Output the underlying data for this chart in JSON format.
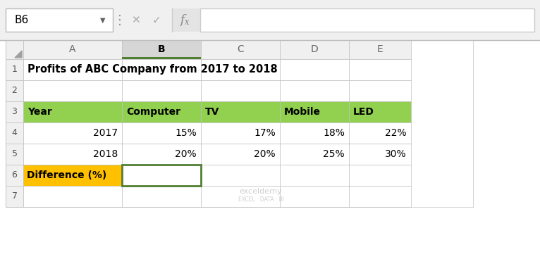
{
  "title": "Profits of ABC Company from 2017 to 2018",
  "formula_bar_cell": "B6",
  "col_letters": [
    "A",
    "B",
    "C",
    "D",
    "E"
  ],
  "header_row": [
    "Year",
    "Computer",
    "TV",
    "Mobile",
    "LED"
  ],
  "row4": [
    "2017",
    "15%",
    "17%",
    "18%",
    "22%"
  ],
  "row5": [
    "2018",
    "20%",
    "20%",
    "25%",
    "30%"
  ],
  "row6_a": "Difference (%)",
  "green_header_bg": "#92D050",
  "yellow_cell_bg": "#FFC000",
  "white_bg": "#FFFFFF",
  "grid_color": "#C0C0C0",
  "col_b_header_bg": "#D6D6D6",
  "formula_bar_bg": "#F0F0F0",
  "selected_cell_border": "#507E32",
  "outer_bg": "#E4E4E4",
  "sheet_bg": "#FFFFFF",
  "title_fontsize": 10.5,
  "cell_fontsize": 10,
  "header_fontsize": 10,
  "formula_fontsize": 10
}
